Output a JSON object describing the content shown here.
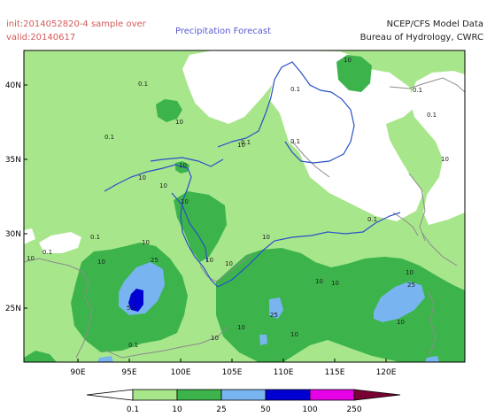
{
  "header": {
    "init": "init:2014052820-4 sample over",
    "valid": "valid:20140617",
    "title": "Precipitation Forecast",
    "source_line1": "NCEP/CFS Model Data",
    "source_line2": "Bureau of Hydrology, CWRC"
  },
  "map": {
    "lon_ticks": [
      "90E",
      "95E",
      "100E",
      "105E",
      "110E",
      "115E",
      "120E"
    ],
    "lat_ticks": [
      "40N",
      "35N",
      "30N",
      "25N"
    ]
  },
  "contour_labels": {
    "c01": [
      "0.1",
      "0.1",
      "0.1",
      "0.1",
      "0.1",
      "0.1",
      "0.1",
      "0.1",
      "0.1",
      "0.1",
      "0.1"
    ],
    "c10": [
      "10",
      "10",
      "10",
      "10",
      "10",
      "10",
      "10",
      "10",
      "10",
      "10",
      "10",
      "10",
      "10",
      "10",
      "10",
      "10",
      "10",
      "10",
      "10",
      "10",
      "10"
    ],
    "c25": [
      "25",
      "25",
      "25"
    ],
    "c50": [
      "50"
    ]
  },
  "legend": {
    "labels": [
      "0.1",
      "10",
      "25",
      "50",
      "100",
      "250"
    ],
    "colors": [
      "#ffffff",
      "#a8e68c",
      "#3cb44b",
      "#78b4f0",
      "#0000d2",
      "#e600e6",
      "#780032"
    ]
  },
  "colors": {
    "light_green": "#a8e68c",
    "green": "#3cb44b",
    "light_blue": "#78b4f0",
    "dark_blue": "#0000d2",
    "river": "#2850c8",
    "border": "#8c8c8c"
  }
}
